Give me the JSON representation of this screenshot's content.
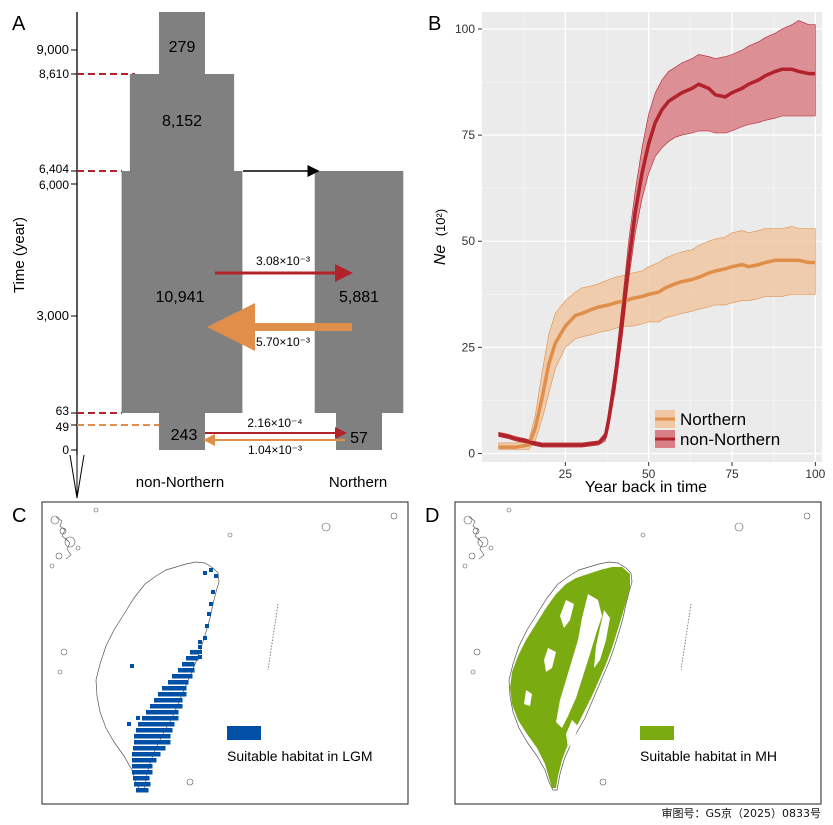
{
  "panels": {
    "a": "A",
    "b": "B",
    "c": "C",
    "d": "D"
  },
  "colors": {
    "block_gray": "#808080",
    "dark_red": "#b2222b",
    "orange": "#e08f4a",
    "northern_fill": "#f0c7a2",
    "non_northern_fill": "#d97f86",
    "lgm_blue": "#0050a8",
    "mh_green": "#7aab10"
  },
  "review_number": "审图号：GS京（2025）0833号",
  "chart_data": [
    {
      "type": "diagram",
      "panel": "A",
      "ylabel": "Time (year)",
      "ylim": [
        0,
        10200
      ],
      "y_ticks": [
        {
          "value": 9000,
          "label": "9,000"
        },
        {
          "value": 8610,
          "label": "8,610",
          "dashed_color": "dark_red"
        },
        {
          "value": 6404,
          "label": "6,404",
          "dashed_color": "dark_red"
        },
        {
          "value": 6000,
          "label": "6,000"
        },
        {
          "value": 3000,
          "label": "3,000"
        },
        {
          "value": 63,
          "label": "63",
          "dashed_color": "dark_red"
        },
        {
          "value": 49,
          "label": "49",
          "dashed_color": "orange"
        },
        {
          "value": 0,
          "label": "0"
        }
      ],
      "populations": [
        {
          "group": "non-Northern",
          "ne": "279",
          "t_start": 8610,
          "t_end": 10200,
          "width": 279
        },
        {
          "group": "non-Northern",
          "ne": "8,152",
          "t_start": 6404,
          "t_end": 8610,
          "width": 8152
        },
        {
          "group": "non-Northern",
          "ne": "10,941",
          "t_start": 63,
          "t_end": 6404,
          "width": 10941
        },
        {
          "group": "non-Northern",
          "ne": "243",
          "t_start": 0,
          "t_end": 63,
          "width": 243
        },
        {
          "group": "Northern",
          "ne": "5,881",
          "t_start": 63,
          "t_end": 6404,
          "width": 5881
        },
        {
          "group": "Northern",
          "ne": "57",
          "t_start": 0,
          "t_end": 63,
          "width": 57
        }
      ],
      "migrations": [
        {
          "label": "3.08×10⁻³",
          "from": "non-Northern",
          "to": "Northern",
          "color": "dark_red"
        },
        {
          "label": "5.70×10⁻³",
          "from": "Northern",
          "to": "non-Northern",
          "color": "orange"
        },
        {
          "label": "2.16×10⁻⁴",
          "from": "non-Northern",
          "to": "Northern",
          "color": "dark_red"
        },
        {
          "label": "1.04×10⁻³",
          "from": "Northern",
          "to": "non-Northern",
          "color": "orange"
        }
      ],
      "group_labels": [
        "non-Northern",
        "Northern"
      ]
    },
    {
      "type": "area",
      "panel": "B",
      "xlabel": "Year back in time",
      "ylabel_main": "Ne",
      "ylabel_unit": "(10²)",
      "xlim": [
        0,
        102
      ],
      "ylim": [
        -2,
        104
      ],
      "x_ticks": [
        25,
        50,
        75,
        100
      ],
      "y_ticks": [
        0,
        25,
        50,
        75,
        100
      ],
      "legend_position": "bottom-right",
      "grid": true,
      "series": [
        {
          "name": "Northern",
          "color": "orange",
          "fill": "northern_fill",
          "x": [
            5,
            10,
            14,
            16,
            18,
            20,
            22,
            25,
            28,
            30,
            33,
            35,
            38,
            40,
            43,
            45,
            48,
            50,
            53,
            55,
            58,
            60,
            63,
            65,
            68,
            70,
            73,
            75,
            78,
            80,
            83,
            85,
            88,
            90,
            93,
            95,
            98,
            100
          ],
          "y": [
            1.5,
            1.5,
            2,
            6,
            13,
            21,
            26,
            30,
            32.5,
            33,
            34,
            34.5,
            35,
            35.5,
            36,
            36.5,
            37,
            37.5,
            38,
            39,
            40,
            40.5,
            41,
            41.5,
            42.5,
            43,
            43.5,
            44,
            44.5,
            44,
            44.5,
            45,
            45.5,
            45.5,
            45.5,
            45.5,
            45,
            45
          ],
          "lower": [
            1,
            1,
            1,
            3,
            8,
            14,
            20,
            25,
            27,
            27.5,
            28,
            28.5,
            29,
            29.5,
            30,
            30,
            30.5,
            31,
            31,
            32,
            32.5,
            33,
            33.5,
            34,
            34.5,
            35,
            35,
            35.5,
            36,
            36,
            36.5,
            37,
            37,
            37,
            37.5,
            37.5,
            37.5,
            37.5
          ],
          "upper": [
            2.5,
            2.5,
            3,
            9,
            19,
            28,
            33,
            36,
            38,
            39,
            39.5,
            40,
            41,
            41.5,
            42,
            42.5,
            43,
            44,
            45,
            46,
            47,
            47.5,
            48,
            49,
            50,
            50.5,
            51,
            52,
            52.5,
            52,
            52.5,
            53,
            53,
            53,
            53.5,
            53,
            53,
            53
          ]
        },
        {
          "name": "non-Northern",
          "color": "dark_red",
          "fill": "non_northern_fill",
          "x": [
            5,
            8,
            10,
            13,
            15,
            18,
            20,
            25,
            30,
            35,
            37,
            38,
            40,
            42,
            44,
            46,
            48,
            50,
            52,
            54,
            56,
            58,
            60,
            63,
            65,
            68,
            70,
            73,
            75,
            78,
            80,
            83,
            85,
            88,
            90,
            93,
            95,
            98,
            100
          ],
          "y": [
            4.5,
            4,
            3.5,
            3,
            2.5,
            2,
            2,
            2,
            2,
            2.5,
            4,
            8,
            18,
            31,
            45,
            57,
            66,
            73,
            78,
            81,
            83,
            84,
            85,
            86,
            87,
            86,
            84.5,
            84,
            85,
            86,
            87,
            88,
            89,
            90,
            90.5,
            90.5,
            90,
            89.5,
            89.5
          ],
          "lower": [
            4,
            3.5,
            3,
            2.5,
            2,
            1.5,
            1.5,
            1.5,
            1.5,
            2,
            3,
            6,
            15,
            27,
            41,
            52,
            60,
            66,
            70,
            72,
            73.5,
            74.5,
            75,
            75.5,
            76,
            76,
            75.5,
            75.5,
            76,
            77,
            77.5,
            78,
            78.5,
            79,
            79.5,
            79.5,
            79.5,
            79.5,
            79.5
          ],
          "upper": [
            5,
            4.5,
            4,
            3.5,
            3,
            2.5,
            2.5,
            2.5,
            2.5,
            3,
            5,
            10,
            21,
            35,
            50,
            62,
            72,
            80,
            85,
            88,
            90,
            91,
            92,
            93,
            94,
            93.5,
            93,
            93.5,
            94,
            95,
            96,
            97,
            98,
            99,
            100,
            101,
            102,
            101,
            101
          ]
        }
      ]
    },
    {
      "type": "map",
      "panel": "C",
      "legend": "Suitable habitat in LGM",
      "color": "lgm_blue"
    },
    {
      "type": "map",
      "panel": "D",
      "legend": "Suitable habitat in MH",
      "color": "mh_green"
    }
  ]
}
